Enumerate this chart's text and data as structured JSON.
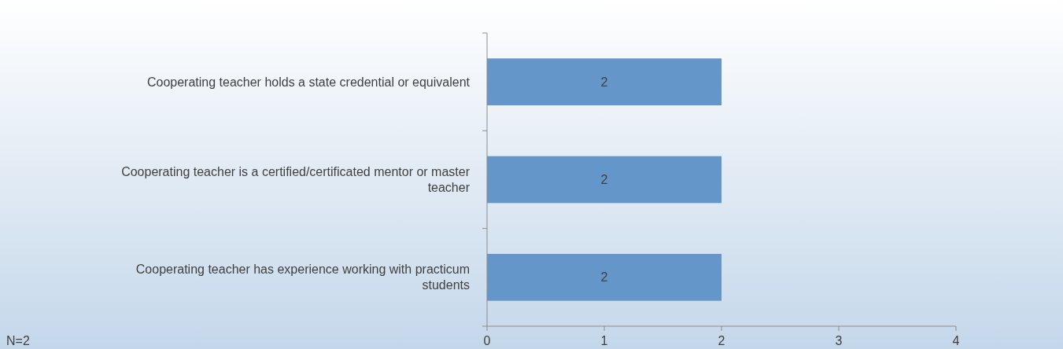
{
  "chart_data": {
    "type": "bar",
    "orientation": "horizontal",
    "categories": [
      "Cooperating teacher holds a state credential or equivalent",
      "Cooperating teacher is a certified/certificated mentor or master teacher",
      "Cooperating teacher has experience working with practicum students"
    ],
    "values": [
      2,
      2,
      2
    ],
    "color": "#6596c9",
    "xlim": [
      0,
      4
    ],
    "xticks": [
      0,
      1,
      2,
      3,
      4
    ],
    "grid": false,
    "data_labels": true,
    "annotations": [
      "N=2"
    ]
  }
}
